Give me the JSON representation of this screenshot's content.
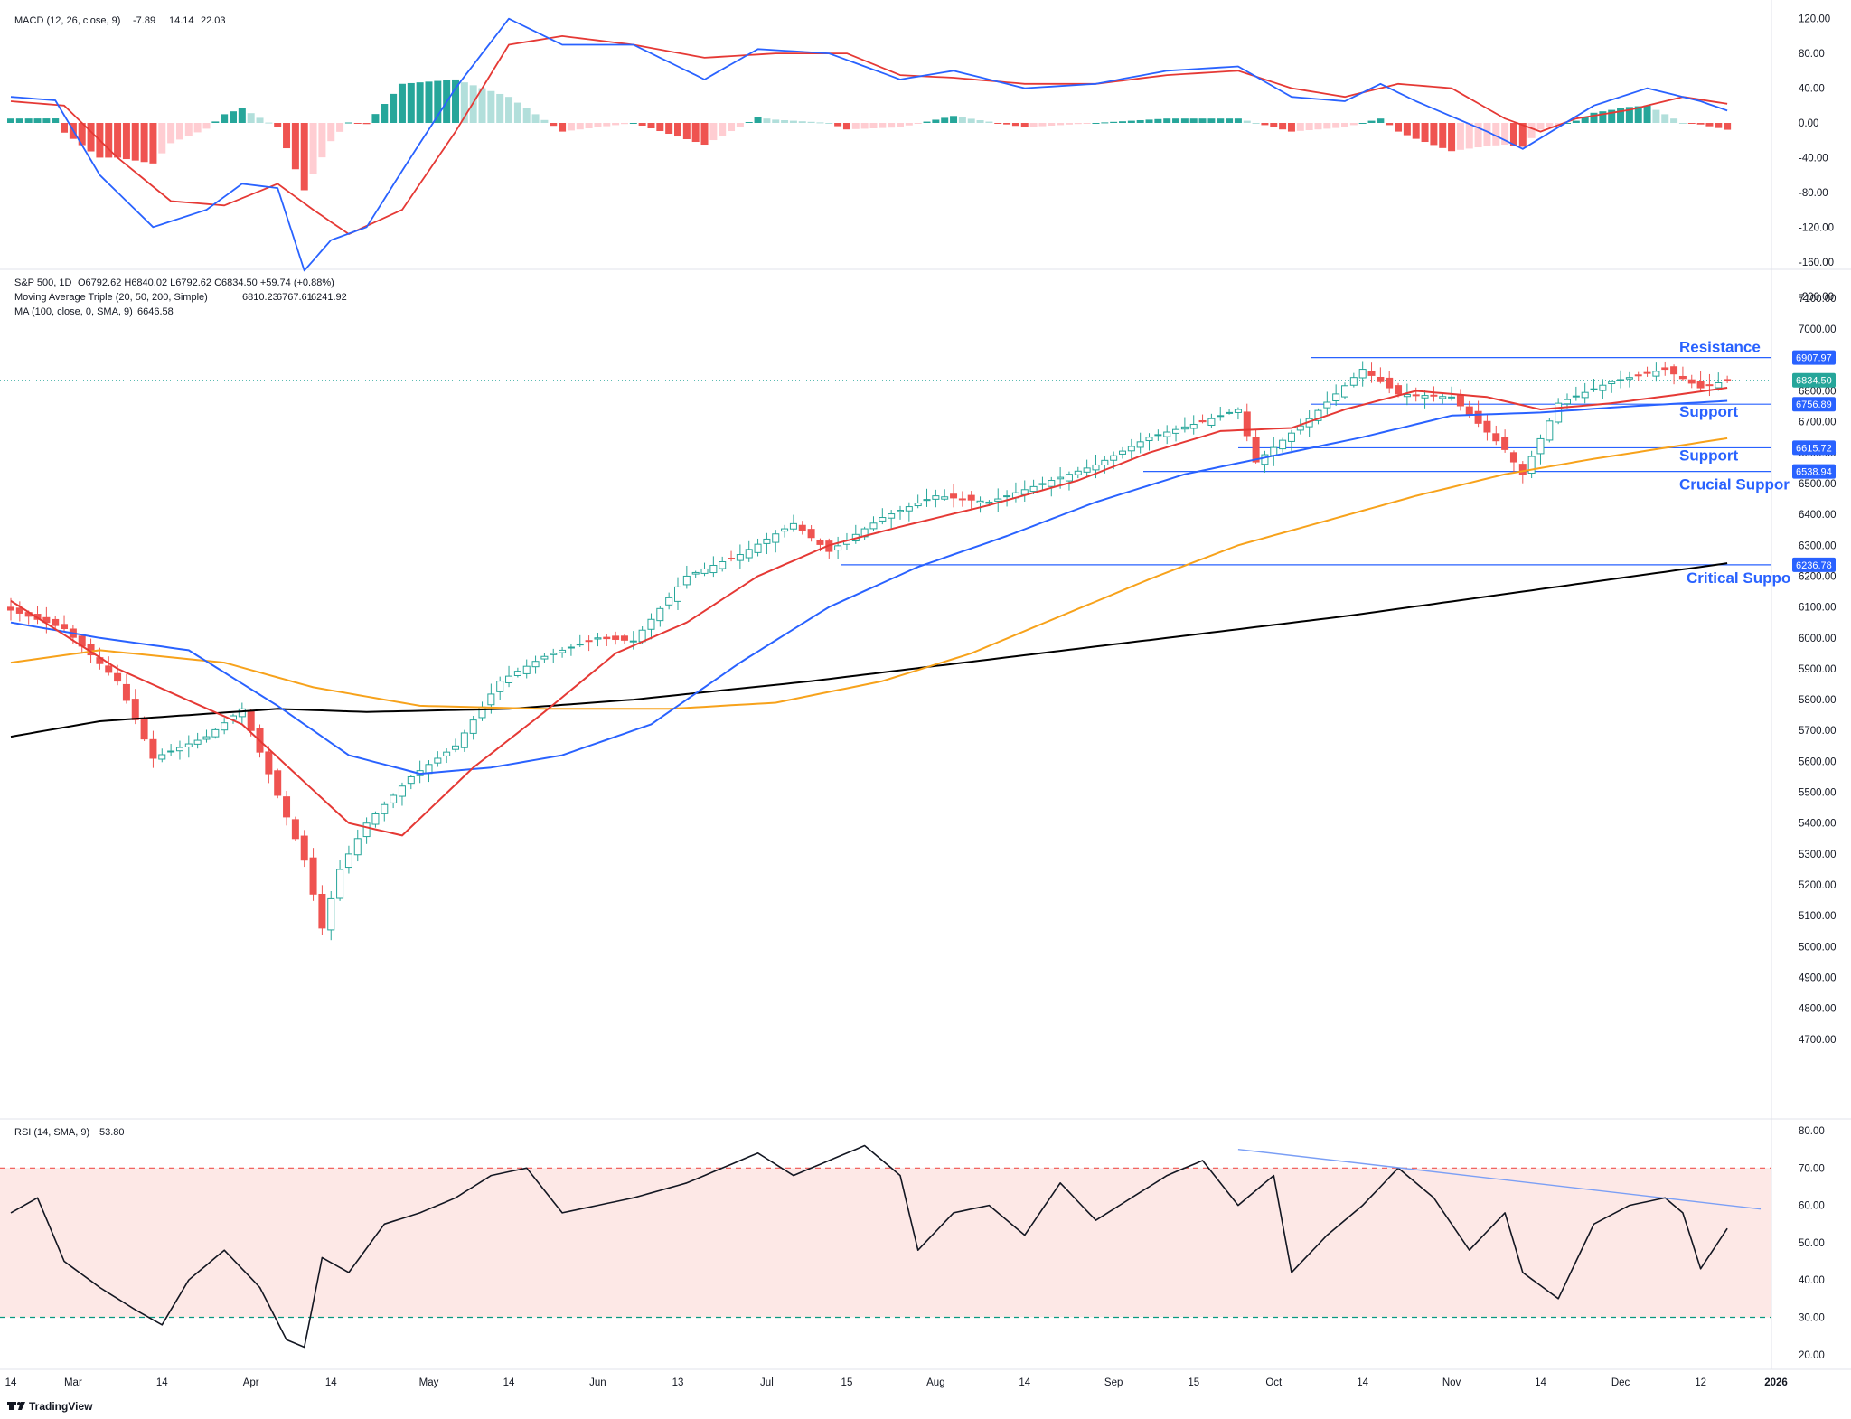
{
  "colors": {
    "up": "#26a69a",
    "up_light": "#b2dfdb",
    "down": "#ef5350",
    "down_light": "#ffcdd2",
    "ma20": "#e53935",
    "ma50": "#2962ff",
    "ma200": "#000000",
    "ma100": "#f7a21b",
    "macd": "#2962ff",
    "signal": "#e53935",
    "rsi": "#131722",
    "hline": "#2962ff",
    "label_blue": "#2962ff",
    "rsi_band": "#fde8e6",
    "rsi_upper": "#ef5350",
    "rsi_lower": "#089981",
    "trend": "#7b9ff5"
  },
  "macd": {
    "legend_title": "MACD (12, 26, close, 9)",
    "legend_values": [
      "-7.89",
      "14.14",
      "22.03"
    ],
    "ticks": [
      "120.00",
      "80.00",
      "40.00",
      "0.00",
      "-40.00",
      "-80.00",
      "-120.00",
      "-160.00",
      "-200.00"
    ],
    "tick_values": [
      120,
      80,
      40,
      0,
      -40,
      -80,
      -120,
      -160,
      -200
    ]
  },
  "price": {
    "legend_line1": "S&P 500, 1D",
    "legend_ohlc": "O6792.62  H6840.02  L6792.62  C6834.50  +59.74 (+0.88%)",
    "legend_line2": "Moving Average Triple (20, 50, 200, Simple)",
    "legend_line2_values": [
      "6810.23",
      "6767.61",
      "6241.92"
    ],
    "legend_line3": "MA (100, close, 0, SMA, 9)",
    "legend_line3_value": "6646.58",
    "ticks": [
      "7100.00",
      "7000.00",
      "6900.00",
      "6800.00",
      "6700.00",
      "6600.00",
      "6500.00",
      "6400.00",
      "6300.00",
      "6200.00",
      "6100.00",
      "6000.00",
      "5900.00",
      "5800.00",
      "5700.00",
      "5600.00",
      "5500.00",
      "5400.00",
      "5300.00",
      "5200.00",
      "5100.00",
      "5000.00",
      "4900.00",
      "4800.00",
      "4700.00"
    ],
    "tick_values": [
      7100,
      7000,
      6900,
      6800,
      6700,
      6600,
      6500,
      6400,
      6300,
      6200,
      6100,
      6000,
      5900,
      5800,
      5700,
      5600,
      5500,
      5400,
      5300,
      5200,
      5100,
      5000,
      4900,
      4800,
      4700
    ],
    "last_price_tag": "6834.50",
    "level_tags": [
      {
        "value": 6907.97,
        "text": "6907.97"
      },
      {
        "value": 6756.89,
        "text": "6756.89"
      },
      {
        "value": 6615.72,
        "text": "6615.72"
      },
      {
        "value": 6538.94,
        "text": "6538.94"
      },
      {
        "value": 6236.78,
        "text": "6236.78"
      }
    ],
    "extra_tick": "6800.00",
    "annotations": [
      {
        "text": "Resistance",
        "value": 6907.97
      },
      {
        "text": "Support",
        "value": 6756.89
      },
      {
        "text": "Support",
        "value": 6615.72
      },
      {
        "text": "Crucial Suppor",
        "value": 6538.94
      },
      {
        "text": "Critical Suppo",
        "value": 6236.78
      }
    ]
  },
  "rsi": {
    "legend_title": "RSI (14, SMA, 9)",
    "legend_value": "53.80",
    "ticks": [
      "80.00",
      "70.00",
      "60.00",
      "50.00",
      "40.00",
      "30.00",
      "20.00"
    ],
    "tick_values": [
      80,
      70,
      60,
      50,
      40,
      30,
      20
    ]
  },
  "time_axis": [
    "14",
    "Mar",
    "14",
    "Apr",
    "14",
    "May",
    "14",
    "Jun",
    "13",
    "Jul",
    "15",
    "Aug",
    "14",
    "Sep",
    "15",
    "Oct",
    "14",
    "Nov",
    "14",
    "Dec",
    "12",
    "2026"
  ],
  "branding": "TradingView",
  "chart_data": {
    "type": "candlestick",
    "title": "S&P 500, 1D",
    "series": [
      {
        "name": "S&P 500",
        "anchors_close": [
          [
            0,
            6090
          ],
          [
            6,
            6030
          ],
          [
            12,
            5860
          ],
          [
            16,
            5610
          ],
          [
            22,
            5680
          ],
          [
            26,
            5770
          ],
          [
            31,
            5420
          ],
          [
            33,
            5280
          ],
          [
            35,
            5060
          ],
          [
            37,
            5250
          ],
          [
            40,
            5400
          ],
          [
            45,
            5550
          ],
          [
            50,
            5650
          ],
          [
            55,
            5860
          ],
          [
            60,
            5940
          ],
          [
            66,
            6000
          ],
          [
            70,
            5990
          ],
          [
            76,
            6200
          ],
          [
            82,
            6270
          ],
          [
            88,
            6370
          ],
          [
            92,
            6280
          ],
          [
            98,
            6390
          ],
          [
            104,
            6460
          ],
          [
            110,
            6440
          ],
          [
            116,
            6500
          ],
          [
            122,
            6560
          ],
          [
            128,
            6650
          ],
          [
            134,
            6700
          ],
          [
            138,
            6740
          ],
          [
            140,
            6570
          ],
          [
            146,
            6710
          ],
          [
            152,
            6870
          ],
          [
            156,
            6790
          ],
          [
            162,
            6780
          ],
          [
            168,
            6610
          ],
          [
            170,
            6530
          ],
          [
            174,
            6760
          ],
          [
            180,
            6830
          ],
          [
            186,
            6870
          ],
          [
            190,
            6810
          ],
          [
            193,
            6834.5
          ]
        ]
      },
      {
        "name": "MA 20",
        "anchors": [
          [
            0,
            6120
          ],
          [
            12,
            5900
          ],
          [
            26,
            5720
          ],
          [
            38,
            5400
          ],
          [
            44,
            5360
          ],
          [
            52,
            5580
          ],
          [
            60,
            5760
          ],
          [
            68,
            5950
          ],
          [
            76,
            6050
          ],
          [
            84,
            6200
          ],
          [
            92,
            6300
          ],
          [
            100,
            6360
          ],
          [
            110,
            6430
          ],
          [
            120,
            6510
          ],
          [
            128,
            6600
          ],
          [
            136,
            6670
          ],
          [
            144,
            6680
          ],
          [
            150,
            6740
          ],
          [
            158,
            6800
          ],
          [
            166,
            6780
          ],
          [
            172,
            6740
          ],
          [
            180,
            6760
          ],
          [
            188,
            6790
          ],
          [
            193,
            6810.23
          ]
        ]
      },
      {
        "name": "MA 50",
        "anchors": [
          [
            0,
            6050
          ],
          [
            10,
            6000
          ],
          [
            20,
            5960
          ],
          [
            30,
            5780
          ],
          [
            38,
            5620
          ],
          [
            46,
            5560
          ],
          [
            54,
            5580
          ],
          [
            62,
            5620
          ],
          [
            72,
            5720
          ],
          [
            82,
            5920
          ],
          [
            92,
            6100
          ],
          [
            102,
            6230
          ],
          [
            112,
            6330
          ],
          [
            122,
            6440
          ],
          [
            132,
            6530
          ],
          [
            142,
            6590
          ],
          [
            152,
            6650
          ],
          [
            162,
            6720
          ],
          [
            172,
            6730
          ],
          [
            182,
            6750
          ],
          [
            193,
            6767.61
          ]
        ]
      },
      {
        "name": "MA 100",
        "anchors": [
          [
            0,
            5920
          ],
          [
            10,
            5960
          ],
          [
            24,
            5920
          ],
          [
            34,
            5840
          ],
          [
            46,
            5780
          ],
          [
            60,
            5770
          ],
          [
            74,
            5770
          ],
          [
            86,
            5790
          ],
          [
            98,
            5860
          ],
          [
            108,
            5950
          ],
          [
            118,
            6070
          ],
          [
            128,
            6190
          ],
          [
            138,
            6300
          ],
          [
            148,
            6380
          ],
          [
            158,
            6460
          ],
          [
            168,
            6530
          ],
          [
            178,
            6580
          ],
          [
            193,
            6646.58
          ]
        ]
      },
      {
        "name": "MA 200",
        "anchors": [
          [
            0,
            5680
          ],
          [
            10,
            5730
          ],
          [
            20,
            5750
          ],
          [
            30,
            5770
          ],
          [
            40,
            5760
          ],
          [
            56,
            5770
          ],
          [
            70,
            5800
          ],
          [
            90,
            5860
          ],
          [
            110,
            5930
          ],
          [
            130,
            6000
          ],
          [
            150,
            6070
          ],
          [
            170,
            6150
          ],
          [
            193,
            6241.92
          ]
        ]
      },
      {
        "name": "MACD",
        "anchors": [
          [
            0,
            30
          ],
          [
            5,
            26
          ],
          [
            10,
            -60
          ],
          [
            16,
            -120
          ],
          [
            22,
            -100
          ],
          [
            26,
            -70
          ],
          [
            30,
            -75
          ],
          [
            33,
            -170
          ],
          [
            36,
            -135
          ],
          [
            40,
            -120
          ],
          [
            44,
            -55
          ],
          [
            50,
            40
          ],
          [
            56,
            120
          ],
          [
            62,
            90
          ],
          [
            70,
            90
          ],
          [
            78,
            50
          ],
          [
            84,
            85
          ],
          [
            92,
            80
          ],
          [
            100,
            50
          ],
          [
            106,
            60
          ],
          [
            114,
            40
          ],
          [
            122,
            45
          ],
          [
            130,
            60
          ],
          [
            138,
            65
          ],
          [
            144,
            30
          ],
          [
            150,
            25
          ],
          [
            154,
            45
          ],
          [
            158,
            25
          ],
          [
            166,
            -10
          ],
          [
            170,
            -30
          ],
          [
            174,
            -5
          ],
          [
            178,
            20
          ],
          [
            184,
            40
          ],
          [
            190,
            25
          ],
          [
            193,
            14.14
          ]
        ]
      },
      {
        "name": "Signal",
        "anchors": [
          [
            0,
            25
          ],
          [
            6,
            20
          ],
          [
            12,
            -40
          ],
          [
            18,
            -90
          ],
          [
            24,
            -95
          ],
          [
            30,
            -70
          ],
          [
            34,
            -100
          ],
          [
            38,
            -128
          ],
          [
            44,
            -100
          ],
          [
            50,
            -10
          ],
          [
            56,
            90
          ],
          [
            62,
            100
          ],
          [
            70,
            90
          ],
          [
            78,
            75
          ],
          [
            86,
            80
          ],
          [
            94,
            80
          ],
          [
            100,
            55
          ],
          [
            106,
            52
          ],
          [
            114,
            45
          ],
          [
            122,
            45
          ],
          [
            130,
            55
          ],
          [
            138,
            60
          ],
          [
            144,
            40
          ],
          [
            150,
            30
          ],
          [
            156,
            45
          ],
          [
            162,
            40
          ],
          [
            168,
            5
          ],
          [
            172,
            -10
          ],
          [
            176,
            5
          ],
          [
            182,
            15
          ],
          [
            188,
            30
          ],
          [
            193,
            22.03
          ]
        ]
      },
      {
        "name": "RSI",
        "anchors": [
          [
            0,
            58
          ],
          [
            3,
            62
          ],
          [
            6,
            45
          ],
          [
            10,
            38
          ],
          [
            14,
            32
          ],
          [
            17,
            28
          ],
          [
            20,
            40
          ],
          [
            24,
            48
          ],
          [
            28,
            38
          ],
          [
            31,
            24
          ],
          [
            33,
            22
          ],
          [
            35,
            46
          ],
          [
            38,
            42
          ],
          [
            42,
            55
          ],
          [
            46,
            58
          ],
          [
            50,
            62
          ],
          [
            54,
            68
          ],
          [
            58,
            70
          ],
          [
            62,
            58
          ],
          [
            66,
            60
          ],
          [
            70,
            62
          ],
          [
            76,
            66
          ],
          [
            80,
            70
          ],
          [
            84,
            74
          ],
          [
            88,
            68
          ],
          [
            92,
            72
          ],
          [
            96,
            76
          ],
          [
            100,
            68
          ],
          [
            102,
            48
          ],
          [
            106,
            58
          ],
          [
            110,
            60
          ],
          [
            114,
            52
          ],
          [
            118,
            66
          ],
          [
            122,
            56
          ],
          [
            126,
            62
          ],
          [
            130,
            68
          ],
          [
            134,
            72
          ],
          [
            138,
            60
          ],
          [
            142,
            68
          ],
          [
            144,
            42
          ],
          [
            148,
            52
          ],
          [
            152,
            60
          ],
          [
            156,
            70
          ],
          [
            160,
            62
          ],
          [
            164,
            48
          ],
          [
            168,
            58
          ],
          [
            170,
            42
          ],
          [
            174,
            35
          ],
          [
            178,
            55
          ],
          [
            182,
            60
          ],
          [
            186,
            62
          ],
          [
            188,
            58
          ],
          [
            190,
            43
          ],
          [
            193,
            53.8
          ]
        ]
      }
    ],
    "reference_levels": [
      6907.97,
      6756.89,
      6615.72,
      6538.94,
      6236.78
    ],
    "rsi_band": [
      30,
      70
    ],
    "yaxis_price": [
      4650,
      7150
    ],
    "yaxis_macd": [
      -210,
      135
    ],
    "yaxis_rsi": [
      15,
      83
    ],
    "bars": 194
  }
}
